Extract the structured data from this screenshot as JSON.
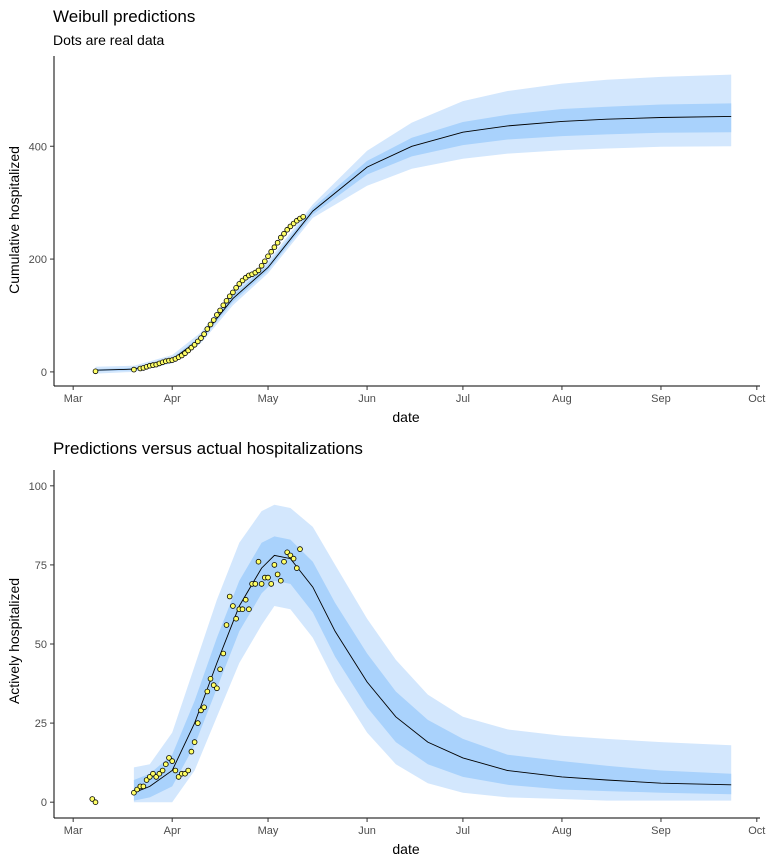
{
  "colors": {
    "outer_band": "#d3e7fd",
    "inner_band": "#a9d2fc",
    "line": "#000000",
    "point_fill": "#ffff66",
    "point_stroke": "#000000"
  },
  "chart_data": [
    {
      "type": "line",
      "title": "Weibull predictions",
      "subtitle": "Dots are real data",
      "xlabel": "date",
      "ylabel": "Cumulative hospitalized",
      "xlim": [
        "2020-02-24",
        "2020-10-02"
      ],
      "ylim": [
        -25,
        560
      ],
      "x_ticks": [
        "2020-03-01",
        "2020-04-01",
        "2020-05-01",
        "2020-06-01",
        "2020-07-01",
        "2020-08-01",
        "2020-09-01",
        "2020-10-01"
      ],
      "x_tick_labels": [
        "Mar",
        "Apr",
        "May",
        "Jun",
        "Jul",
        "Aug",
        "Sep",
        "Oct"
      ],
      "y_ticks": [
        0,
        200,
        400
      ],
      "y_tick_labels": [
        "0",
        "200",
        "400"
      ],
      "series_mean": {
        "x": [
          "2020-03-08",
          "2020-03-20",
          "2020-04-01",
          "2020-04-10",
          "2020-04-20",
          "2020-05-01",
          "2020-05-15",
          "2020-06-01",
          "2020-06-15",
          "2020-07-01",
          "2020-07-15",
          "2020-08-01",
          "2020-08-15",
          "2020-09-01",
          "2020-09-23"
        ],
        "y": [
          3,
          5,
          22,
          60,
          130,
          185,
          285,
          363,
          400,
          425,
          436,
          444,
          448,
          451,
          453
        ]
      },
      "band_inner": {
        "x": [
          "2020-03-08",
          "2020-03-20",
          "2020-04-01",
          "2020-04-10",
          "2020-04-20",
          "2020-05-01",
          "2020-05-15",
          "2020-06-01",
          "2020-06-15",
          "2020-07-01",
          "2020-07-15",
          "2020-08-01",
          "2020-08-15",
          "2020-09-01",
          "2020-09-23"
        ],
        "lower": [
          1,
          3,
          19,
          56,
          124,
          180,
          279,
          350,
          382,
          402,
          412,
          418,
          421,
          424,
          425
        ],
        "upper": [
          5,
          7,
          25,
          64,
          136,
          190,
          291,
          374,
          415,
          443,
          456,
          466,
          470,
          474,
          476
        ]
      },
      "band_outer": {
        "x": [
          "2020-03-08",
          "2020-03-20",
          "2020-04-01",
          "2020-04-10",
          "2020-04-20",
          "2020-05-01",
          "2020-05-15",
          "2020-06-01",
          "2020-06-15",
          "2020-07-01",
          "2020-07-15",
          "2020-08-01",
          "2020-08-15",
          "2020-09-01",
          "2020-09-23"
        ],
        "lower": [
          -3,
          0,
          15,
          51,
          118,
          175,
          273,
          330,
          360,
          378,
          387,
          393,
          396,
          399,
          400
        ],
        "upper": [
          9,
          11,
          30,
          70,
          143,
          196,
          297,
          392,
          442,
          480,
          498,
          511,
          518,
          523,
          527
        ]
      },
      "points": {
        "x": [
          "2020-03-08",
          "2020-03-20",
          "2020-03-22",
          "2020-03-23",
          "2020-03-24",
          "2020-03-25",
          "2020-03-26",
          "2020-03-27",
          "2020-03-28",
          "2020-03-29",
          "2020-03-30",
          "2020-03-31",
          "2020-04-01",
          "2020-04-02",
          "2020-04-03",
          "2020-04-04",
          "2020-04-05",
          "2020-04-06",
          "2020-04-07",
          "2020-04-08",
          "2020-04-09",
          "2020-04-10",
          "2020-04-11",
          "2020-04-12",
          "2020-04-13",
          "2020-04-14",
          "2020-04-15",
          "2020-04-16",
          "2020-04-17",
          "2020-04-18",
          "2020-04-19",
          "2020-04-20",
          "2020-04-21",
          "2020-04-22",
          "2020-04-23",
          "2020-04-24",
          "2020-04-25",
          "2020-04-26",
          "2020-04-27",
          "2020-04-28",
          "2020-04-29",
          "2020-04-30",
          "2020-05-01",
          "2020-05-02",
          "2020-05-03",
          "2020-05-04",
          "2020-05-05",
          "2020-05-06",
          "2020-05-07",
          "2020-05-08",
          "2020-05-09",
          "2020-05-10",
          "2020-05-11",
          "2020-05-12"
        ],
        "y": [
          1,
          4,
          6,
          7,
          9,
          11,
          12,
          13,
          15,
          17,
          19,
          20,
          21,
          23,
          26,
          29,
          33,
          38,
          43,
          48,
          54,
          60,
          67,
          76,
          84,
          92,
          101,
          109,
          118,
          126,
          134,
          141,
          149,
          156,
          162,
          167,
          171,
          173,
          176,
          180,
          188,
          196,
          205,
          213,
          221,
          229,
          238,
          245,
          252,
          258,
          263,
          268,
          272,
          275
        ]
      }
    },
    {
      "type": "line",
      "title": "Predictions versus actual hospitalizations",
      "xlabel": "date",
      "ylabel": "Actively hospitalized",
      "xlim": [
        "2020-02-24",
        "2020-10-02"
      ],
      "ylim": [
        -5,
        105
      ],
      "x_ticks": [
        "2020-03-01",
        "2020-04-01",
        "2020-05-01",
        "2020-06-01",
        "2020-07-01",
        "2020-08-01",
        "2020-09-01",
        "2020-10-01"
      ],
      "x_tick_labels": [
        "Mar",
        "Apr",
        "May",
        "Jun",
        "Jul",
        "Aug",
        "Sep",
        "Oct"
      ],
      "y_ticks": [
        0,
        25,
        50,
        75,
        100
      ],
      "y_tick_labels": [
        "0",
        "25",
        "50",
        "75",
        "100"
      ],
      "series_mean": {
        "x": [
          "2020-03-20",
          "2020-03-25",
          "2020-04-01",
          "2020-04-08",
          "2020-04-15",
          "2020-04-22",
          "2020-04-29",
          "2020-05-03",
          "2020-05-08",
          "2020-05-15",
          "2020-05-22",
          "2020-06-01",
          "2020-06-10",
          "2020-06-20",
          "2020-07-01",
          "2020-07-15",
          "2020-08-01",
          "2020-08-15",
          "2020-09-01",
          "2020-09-23"
        ],
        "y": [
          3,
          5,
          10,
          25,
          44,
          62,
          74,
          78,
          77,
          68,
          54,
          38,
          27,
          19,
          14,
          10,
          8,
          7,
          6,
          5.5
        ]
      },
      "band_inner": {
        "x": [
          "2020-03-20",
          "2020-03-25",
          "2020-04-01",
          "2020-04-08",
          "2020-04-15",
          "2020-04-22",
          "2020-04-29",
          "2020-05-03",
          "2020-05-08",
          "2020-05-15",
          "2020-05-22",
          "2020-06-01",
          "2020-06-10",
          "2020-06-20",
          "2020-07-01",
          "2020-07-15",
          "2020-08-01",
          "2020-08-15",
          "2020-09-01",
          "2020-09-23"
        ],
        "lower": [
          0.5,
          1.5,
          5,
          18,
          36,
          54,
          66,
          70,
          69,
          60,
          46,
          30,
          19,
          12,
          8,
          5.5,
          4,
          3.5,
          3,
          2.5
        ],
        "upper": [
          7,
          9,
          15,
          32,
          52,
          70,
          82,
          84,
          83,
          76,
          63,
          47,
          35,
          26,
          20,
          15,
          13,
          11.5,
          10,
          9
        ]
      },
      "band_outer": {
        "x": [
          "2020-03-20",
          "2020-03-25",
          "2020-04-01",
          "2020-04-08",
          "2020-04-15",
          "2020-04-22",
          "2020-04-29",
          "2020-05-03",
          "2020-05-08",
          "2020-05-15",
          "2020-05-22",
          "2020-06-01",
          "2020-06-10",
          "2020-06-20",
          "2020-07-01",
          "2020-07-15",
          "2020-08-01",
          "2020-08-15",
          "2020-09-01",
          "2020-09-23"
        ],
        "lower": [
          0,
          0,
          0,
          10,
          27,
          44,
          56,
          62,
          61,
          52,
          38,
          22,
          12,
          6,
          3,
          1.5,
          1,
          0.5,
          0.5,
          0.5
        ],
        "upper": [
          11,
          12,
          22,
          43,
          64,
          82,
          92,
          94,
          93,
          87,
          75,
          58,
          45,
          34,
          27,
          23,
          21,
          20,
          19,
          18
        ]
      },
      "points": {
        "x": [
          "2020-03-07",
          "2020-03-08",
          "2020-03-20",
          "2020-03-21",
          "2020-03-22",
          "2020-03-23",
          "2020-03-24",
          "2020-03-25",
          "2020-03-26",
          "2020-03-27",
          "2020-03-28",
          "2020-03-29",
          "2020-03-30",
          "2020-03-31",
          "2020-04-01",
          "2020-04-02",
          "2020-04-03",
          "2020-04-04",
          "2020-04-05",
          "2020-04-06",
          "2020-04-07",
          "2020-04-08",
          "2020-04-09",
          "2020-04-10",
          "2020-04-11",
          "2020-04-12",
          "2020-04-13",
          "2020-04-14",
          "2020-04-15",
          "2020-04-16",
          "2020-04-17",
          "2020-04-18",
          "2020-04-19",
          "2020-04-20",
          "2020-04-21",
          "2020-04-22",
          "2020-04-23",
          "2020-04-24",
          "2020-04-25",
          "2020-04-26",
          "2020-04-27",
          "2020-04-28",
          "2020-04-29",
          "2020-04-30",
          "2020-05-01",
          "2020-05-02",
          "2020-05-03",
          "2020-05-04",
          "2020-05-05",
          "2020-05-06",
          "2020-05-07",
          "2020-05-08",
          "2020-05-09",
          "2020-05-10",
          "2020-05-11"
        ],
        "y": [
          1,
          0,
          3,
          4,
          5,
          5,
          7,
          8,
          9,
          8,
          9,
          10,
          12,
          14,
          13,
          10,
          8,
          9,
          9,
          10,
          16,
          19,
          25,
          29,
          30,
          35,
          39,
          37,
          36,
          42,
          47,
          56,
          65,
          62,
          58,
          61,
          61,
          64,
          61,
          69,
          69,
          76,
          69,
          71,
          71,
          69,
          75,
          72,
          70,
          76,
          79,
          78,
          77,
          74,
          80
        ]
      }
    }
  ]
}
